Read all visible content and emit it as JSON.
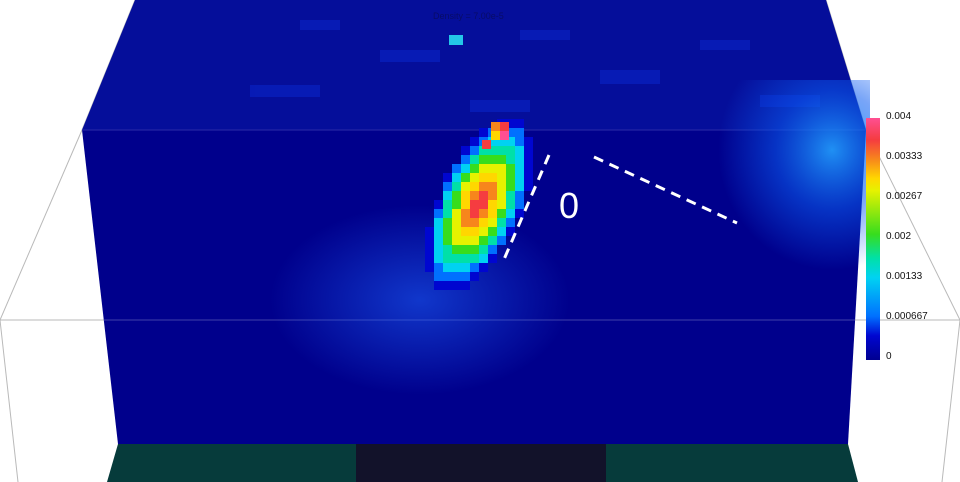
{
  "viewport": {
    "timestamp_text": "Density = 7.00e-5"
  },
  "colorbar": {
    "max_label": "0.004",
    "tick_labels": [
      "0.004",
      "0.00333",
      "0.00267",
      "0.002",
      "0.00133",
      "0.000667",
      "0"
    ],
    "min_value": 0,
    "max_value": 0.004,
    "colors": [
      "#000090",
      "#0006d0",
      "#0070ff",
      "#00d2f2",
      "#00e0a8",
      "#37dd1d",
      "#e6f200",
      "#ffd700",
      "#f7861c",
      "#f53c40",
      "#ff4f92"
    ]
  },
  "annotation": {
    "angle_label": "0"
  },
  "colors": {
    "volume_dark": "#00008c",
    "volume_mid": "#0616d2",
    "floor_left": "#063b3b",
    "floor_center": "#12122a",
    "peak": "#ff4f92"
  }
}
